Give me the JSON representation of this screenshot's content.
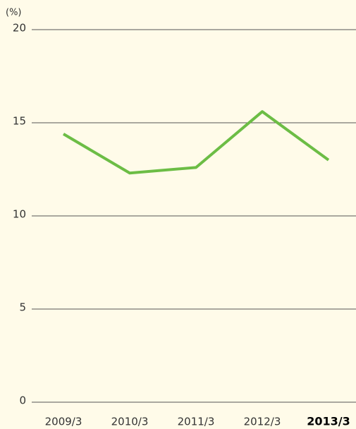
{
  "chart_data": {
    "type": "line",
    "y_unit": "(%)",
    "categories": [
      "2009/3",
      "2010/3",
      "2011/3",
      "2012/3",
      "2013/3"
    ],
    "series": [
      {
        "color": "#6cbd45",
        "values": [
          14.4,
          12.3,
          12.6,
          15.6,
          13.0
        ]
      }
    ],
    "ylim": [
      0,
      20
    ],
    "yticks": [
      0,
      5,
      10,
      15,
      20
    ],
    "grid": true
  }
}
